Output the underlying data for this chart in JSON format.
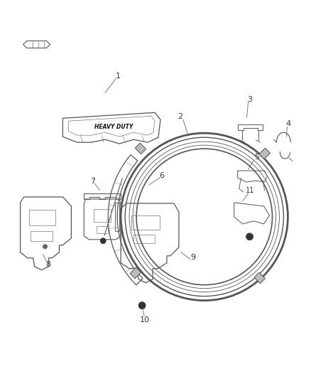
{
  "bg_color": "#ffffff",
  "fig_width": 4.38,
  "fig_height": 5.33,
  "dpi": 100,
  "line_color": "#555555",
  "text_color": "#333333",
  "font_size": 8
}
